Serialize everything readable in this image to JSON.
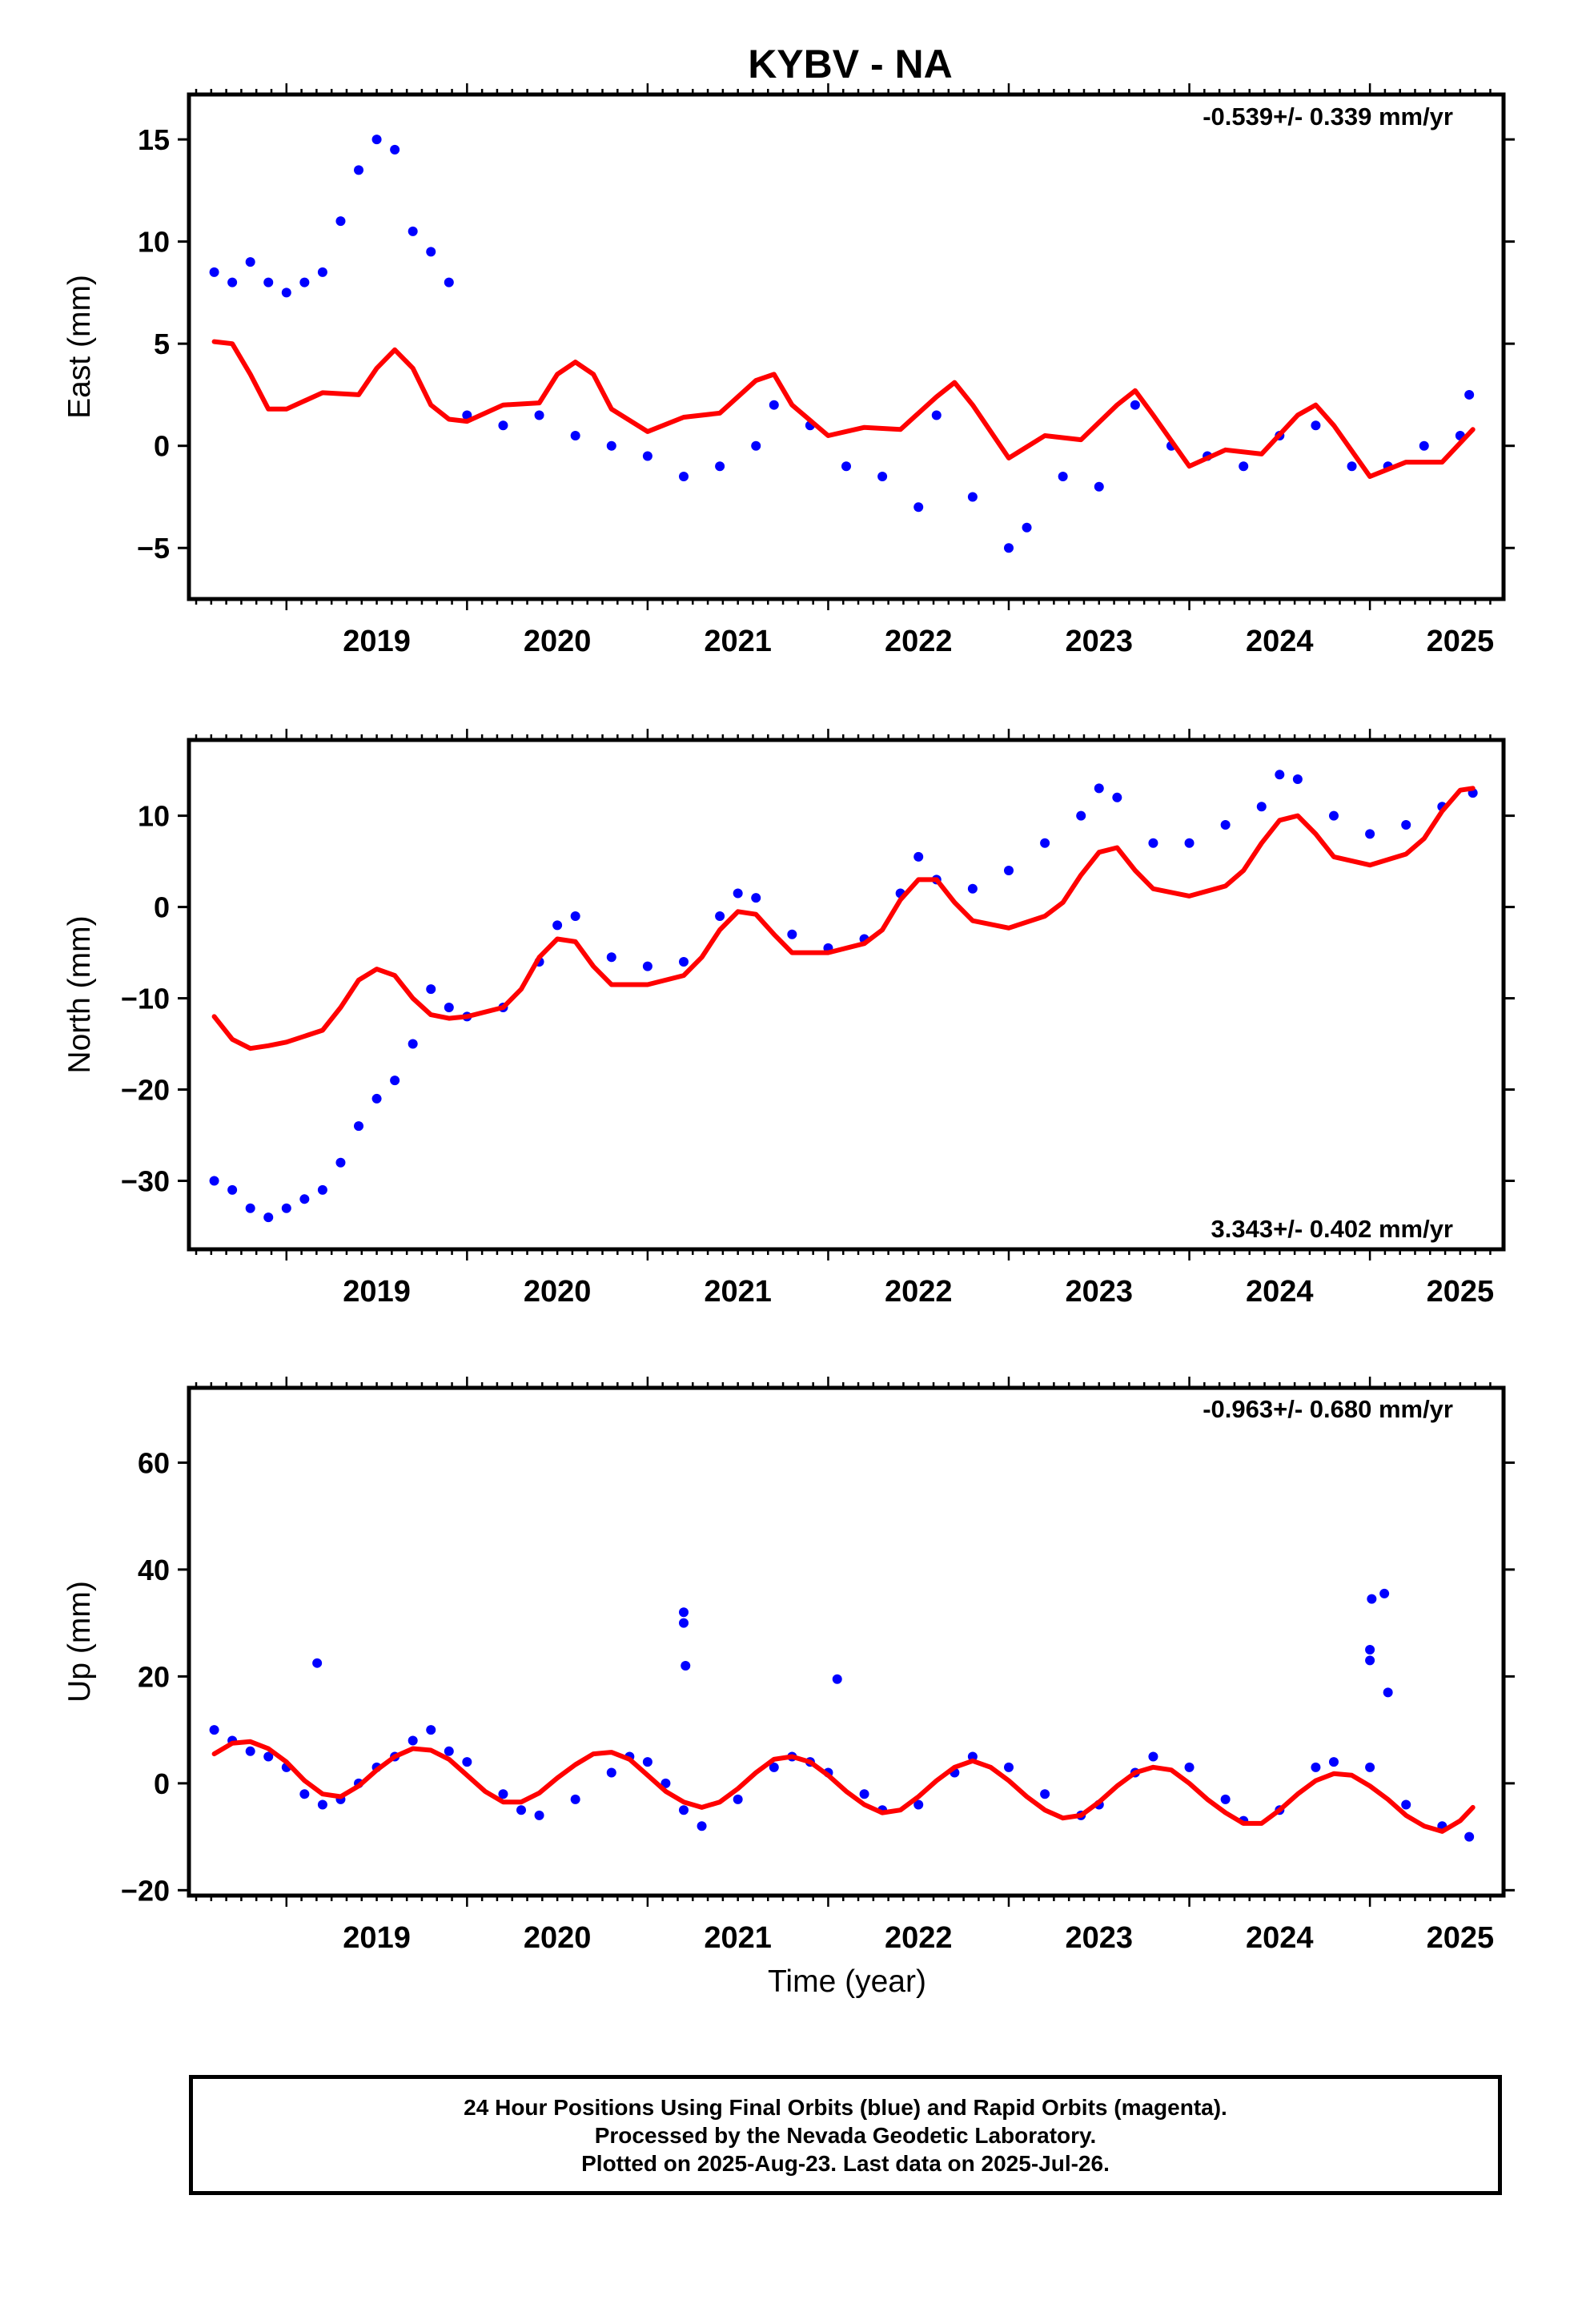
{
  "title": "KYBV - NA",
  "xlabel": "Time (year)",
  "footer": [
    "24 Hour Positions Using Final Orbits (blue) and Rapid Orbits (magenta).",
    "Processed by the Nevada Geodetic Laboratory.",
    "Plotted on 2025-Aug-23. Last data on 2025-Jul-26."
  ],
  "colors": {
    "data": "#0000ff",
    "model": "#ff0000",
    "frame": "#000000"
  },
  "chart_data": [
    {
      "type": "scatter",
      "ylabel": "East (mm)",
      "rate_text": "-0.539+/- 0.339 mm/yr",
      "xlim": [
        2018.46,
        2025.74
      ],
      "ylim": [
        -7.5,
        17.2
      ],
      "yticks": [
        -5,
        0,
        5,
        10,
        15
      ],
      "xticks": [
        2019,
        2020,
        2021,
        2022,
        2023,
        2024,
        2025
      ],
      "series": [
        {
          "kind": "points",
          "x": [
            2018.6,
            2018.7,
            2018.8,
            2018.9,
            2019.0,
            2019.1,
            2019.2,
            2019.3,
            2019.4,
            2019.5,
            2019.6,
            2019.7,
            2019.8,
            2019.9,
            2020.0,
            2020.2,
            2020.4,
            2020.6,
            2020.8,
            2021.0,
            2021.2,
            2021.4,
            2021.6,
            2021.7,
            2021.9,
            2022.1,
            2022.3,
            2022.5,
            2022.6,
            2022.8,
            2023.0,
            2023.1,
            2023.3,
            2023.5,
            2023.7,
            2023.9,
            2024.1,
            2024.3,
            2024.5,
            2024.7,
            2024.9,
            2025.1,
            2025.3,
            2025.5,
            2025.55
          ],
          "y": [
            8.5,
            8.0,
            9.0,
            8.0,
            7.5,
            8.0,
            8.5,
            11.0,
            13.5,
            15.0,
            14.5,
            10.5,
            9.5,
            8.0,
            1.5,
            1.0,
            1.5,
            0.5,
            0.0,
            -0.5,
            -1.5,
            -1.0,
            0.0,
            2.0,
            1.0,
            -1.0,
            -1.5,
            -3.0,
            1.5,
            -2.5,
            -5.0,
            -4.0,
            -1.5,
            -2.0,
            2.0,
            0.0,
            -0.5,
            -1.0,
            0.5,
            1.0,
            -1.0,
            -1.0,
            0.0,
            0.5,
            2.5
          ]
        },
        {
          "kind": "model",
          "x": [
            2018.6,
            2018.7,
            2018.8,
            2018.9,
            2019.0,
            2019.2,
            2019.4,
            2019.5,
            2019.6,
            2019.7,
            2019.8,
            2019.9,
            2020.0,
            2020.2,
            2020.4,
            2020.5,
            2020.6,
            2020.7,
            2020.8,
            2021.0,
            2021.2,
            2021.4,
            2021.6,
            2021.7,
            2021.8,
            2022.0,
            2022.2,
            2022.4,
            2022.6,
            2022.7,
            2022.8,
            2023.0,
            2023.2,
            2023.4,
            2023.6,
            2023.7,
            2023.8,
            2024.0,
            2024.2,
            2024.4,
            2024.6,
            2024.7,
            2024.8,
            2025.0,
            2025.2,
            2025.4,
            2025.57
          ],
          "y": [
            5.1,
            5.0,
            3.5,
            1.8,
            1.8,
            2.6,
            2.5,
            3.8,
            4.7,
            3.8,
            2.0,
            1.3,
            1.2,
            2.0,
            2.1,
            3.5,
            4.1,
            3.5,
            1.8,
            0.7,
            1.4,
            1.6,
            3.2,
            3.5,
            2.0,
            0.5,
            0.9,
            0.8,
            2.4,
            3.1,
            2.0,
            -0.6,
            0.5,
            0.3,
            2.0,
            2.7,
            1.5,
            -1.0,
            -0.2,
            -0.4,
            1.5,
            2.0,
            1.0,
            -1.5,
            -0.8,
            -0.8,
            0.8
          ]
        }
      ]
    },
    {
      "type": "scatter",
      "ylabel": "North (mm)",
      "rate_text": "3.343+/- 0.402 mm/yr",
      "xlim": [
        2018.46,
        2025.74
      ],
      "ylim": [
        -37.5,
        18.3
      ],
      "yticks": [
        -30,
        -20,
        -10,
        0,
        10
      ],
      "xticks": [
        2019,
        2020,
        2021,
        2022,
        2023,
        2024,
        2025
      ],
      "series": [
        {
          "kind": "points",
          "x": [
            2018.6,
            2018.7,
            2018.8,
            2018.9,
            2019.0,
            2019.1,
            2019.2,
            2019.3,
            2019.4,
            2019.5,
            2019.6,
            2019.7,
            2019.8,
            2019.9,
            2020.0,
            2020.2,
            2020.4,
            2020.5,
            2020.6,
            2020.8,
            2021.0,
            2021.2,
            2021.4,
            2021.5,
            2021.6,
            2021.8,
            2022.0,
            2022.2,
            2022.4,
            2022.5,
            2022.6,
            2022.8,
            2023.0,
            2023.2,
            2023.4,
            2023.5,
            2023.6,
            2023.8,
            2024.0,
            2024.2,
            2024.4,
            2024.5,
            2024.6,
            2024.8,
            2025.0,
            2025.2,
            2025.4,
            2025.57
          ],
          "y": [
            -30.0,
            -31.0,
            -33.0,
            -34.0,
            -33.0,
            -32.0,
            -31.0,
            -28.0,
            -24.0,
            -21.0,
            -19.0,
            -15.0,
            -9.0,
            -11.0,
            -12.0,
            -11.0,
            -6.0,
            -2.0,
            -1.0,
            -5.5,
            -6.5,
            -6.0,
            -1.0,
            1.5,
            1.0,
            -3.0,
            -4.5,
            -3.5,
            1.5,
            5.5,
            3.0,
            2.0,
            4.0,
            7.0,
            10.0,
            13.0,
            12.0,
            7.0,
            7.0,
            9.0,
            11.0,
            14.5,
            14.0,
            10.0,
            8.0,
            9.0,
            11.0,
            12.5
          ]
        },
        {
          "kind": "model",
          "x": [
            2018.6,
            2018.7,
            2018.8,
            2018.9,
            2019.0,
            2019.2,
            2019.3,
            2019.4,
            2019.5,
            2019.6,
            2019.7,
            2019.8,
            2019.9,
            2020.0,
            2020.2,
            2020.3,
            2020.4,
            2020.5,
            2020.6,
            2020.7,
            2020.8,
            2021.0,
            2021.2,
            2021.3,
            2021.4,
            2021.5,
            2021.6,
            2021.7,
            2021.8,
            2022.0,
            2022.2,
            2022.3,
            2022.4,
            2022.5,
            2022.6,
            2022.7,
            2022.8,
            2023.0,
            2023.2,
            2023.3,
            2023.4,
            2023.5,
            2023.6,
            2023.7,
            2023.8,
            2024.0,
            2024.2,
            2024.3,
            2024.4,
            2024.5,
            2024.6,
            2024.7,
            2024.8,
            2025.0,
            2025.2,
            2025.3,
            2025.4,
            2025.5,
            2025.57
          ],
          "y": [
            -12.0,
            -14.5,
            -15.5,
            -15.2,
            -14.8,
            -13.5,
            -11.0,
            -8.0,
            -6.8,
            -7.5,
            -10.0,
            -11.8,
            -12.2,
            -12.0,
            -11.0,
            -9.0,
            -5.5,
            -3.5,
            -3.8,
            -6.5,
            -8.5,
            -8.5,
            -7.5,
            -5.5,
            -2.5,
            -0.5,
            -0.8,
            -3.0,
            -5.0,
            -5.0,
            -4.0,
            -2.5,
            0.8,
            3.0,
            3.0,
            0.5,
            -1.5,
            -2.3,
            -1.0,
            0.5,
            3.5,
            6.0,
            6.5,
            4.0,
            2.0,
            1.2,
            2.3,
            4.0,
            7.0,
            9.5,
            10.0,
            8.0,
            5.5,
            4.6,
            5.8,
            7.5,
            10.5,
            12.8,
            13.0
          ]
        }
      ]
    },
    {
      "type": "scatter",
      "ylabel": "Up (mm)",
      "rate_text": "-0.963+/- 0.680 mm/yr",
      "xlim": [
        2018.46,
        2025.74
      ],
      "ylim": [
        -21.0,
        74.0
      ],
      "yticks": [
        -20,
        0,
        20,
        40,
        60
      ],
      "xticks": [
        2019,
        2020,
        2021,
        2022,
        2023,
        2024,
        2025
      ],
      "series": [
        {
          "kind": "points",
          "x": [
            2018.6,
            2018.7,
            2018.8,
            2018.9,
            2019.0,
            2019.1,
            2019.2,
            2019.3,
            2019.4,
            2019.5,
            2019.6,
            2019.7,
            2019.8,
            2019.9,
            2020.0,
            2020.2,
            2020.3,
            2020.4,
            2020.6,
            2020.8,
            2020.9,
            2021.0,
            2021.1,
            2021.2,
            2021.3,
            2021.5,
            2021.7,
            2021.8,
            2021.9,
            2022.0,
            2022.2,
            2022.3,
            2022.5,
            2022.7,
            2022.8,
            2023.0,
            2023.2,
            2023.4,
            2023.5,
            2023.7,
            2023.8,
            2024.0,
            2024.2,
            2024.3,
            2024.5,
            2024.7,
            2024.8,
            2025.0,
            2025.2,
            2025.4,
            2025.55
          ],
          "y": [
            10,
            8,
            6,
            5,
            3,
            -2,
            -4,
            -3,
            0,
            3,
            5,
            8,
            10,
            6,
            4,
            -2,
            -5,
            -6,
            -3,
            2,
            5,
            4,
            0,
            -5,
            -8,
            -3,
            3,
            5,
            4,
            2,
            -2,
            -5,
            -4,
            2,
            5,
            3,
            -2,
            -6,
            -4,
            2,
            5,
            3,
            -3,
            -7,
            -5,
            3,
            4,
            3,
            -4,
            -8,
            -10
          ]
        },
        {
          "kind": "points",
          "x": [
            2019.17,
            2021.2,
            2021.2,
            2021.21,
            2022.05,
            2025.0,
            2025.0,
            2025.01,
            2025.08,
            2025.1
          ],
          "y": [
            22.5,
            32,
            30,
            22,
            19.5,
            25,
            23,
            34.5,
            35.5,
            17
          ]
        },
        {
          "kind": "model",
          "x": [
            2018.6,
            2018.7,
            2018.8,
            2018.9,
            2019.0,
            2019.1,
            2019.2,
            2019.3,
            2019.4,
            2019.5,
            2019.6,
            2019.7,
            2019.8,
            2019.9,
            2020.0,
            2020.1,
            2020.2,
            2020.3,
            2020.4,
            2020.5,
            2020.6,
            2020.7,
            2020.8,
            2020.9,
            2021.0,
            2021.1,
            2021.2,
            2021.3,
            2021.4,
            2021.5,
            2021.6,
            2021.7,
            2021.8,
            2021.9,
            2022.0,
            2022.1,
            2022.2,
            2022.3,
            2022.4,
            2022.5,
            2022.6,
            2022.7,
            2022.8,
            2022.9,
            2023.0,
            2023.1,
            2023.2,
            2023.3,
            2023.4,
            2023.5,
            2023.6,
            2023.7,
            2023.8,
            2023.9,
            2024.0,
            2024.1,
            2024.2,
            2024.3,
            2024.4,
            2024.5,
            2024.6,
            2024.7,
            2024.8,
            2024.9,
            2025.0,
            2025.1,
            2025.2,
            2025.3,
            2025.4,
            2025.5,
            2025.57
          ],
          "y": [
            5.5,
            7.5,
            7.8,
            6.5,
            4.0,
            0.5,
            -2.0,
            -2.5,
            -0.5,
            2.5,
            5.0,
            6.5,
            6.2,
            4.5,
            1.5,
            -1.5,
            -3.5,
            -3.5,
            -1.8,
            1.0,
            3.5,
            5.5,
            5.8,
            4.5,
            1.5,
            -1.5,
            -3.5,
            -4.5,
            -3.5,
            -1.0,
            2.0,
            4.5,
            5.0,
            4.0,
            1.5,
            -1.5,
            -4.0,
            -5.5,
            -5.0,
            -2.5,
            0.5,
            3.0,
            4.2,
            3.0,
            0.5,
            -2.5,
            -5.0,
            -6.5,
            -6.0,
            -3.5,
            -0.5,
            2.0,
            3.0,
            2.5,
            0.0,
            -3.0,
            -5.5,
            -7.5,
            -7.5,
            -5.0,
            -2.0,
            0.5,
            1.8,
            1.5,
            -0.5,
            -3.0,
            -6.0,
            -8.0,
            -9.0,
            -7.0,
            -4.5
          ]
        }
      ]
    }
  ]
}
